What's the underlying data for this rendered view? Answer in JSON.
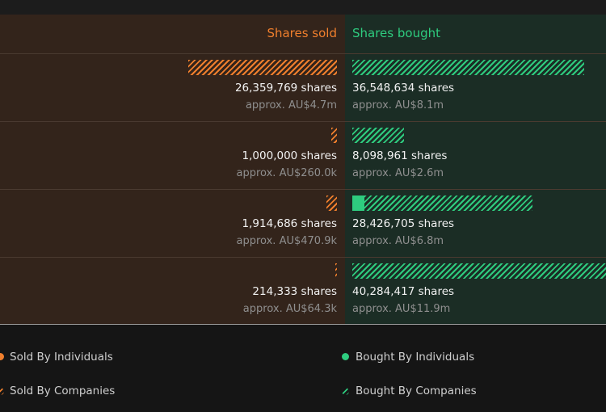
{
  "chart_data": {
    "type": "bar",
    "headers": {
      "sold": "Shares sold",
      "bought": "Shares bought"
    },
    "rows": [
      {
        "sold_individuals": 0,
        "sold_companies": 26359769,
        "sold_shares": "26,359,769 shares",
        "sold_value": "approx. AU$4.7m",
        "bought_individuals": 0,
        "bought_companies": 36548634,
        "bought_shares": "36,548,634 shares",
        "bought_value": "approx. AU$8.1m"
      },
      {
        "sold_individuals": 0,
        "sold_companies": 1000000,
        "sold_shares": "1,000,000 shares",
        "sold_value": "approx. AU$260.0k",
        "bought_individuals": 0,
        "bought_companies": 8098961,
        "bought_shares": "8,098,961 shares",
        "bought_value": "approx. AU$2.6m"
      },
      {
        "sold_individuals": 0,
        "sold_companies": 1914686,
        "sold_shares": "1,914,686 shares",
        "sold_value": "approx. AU$470.9k",
        "bought_individuals": 1900000,
        "bought_companies": 26526705,
        "bought_shares": "28,426,705 shares",
        "bought_value": "approx. AU$6.8m"
      },
      {
        "sold_individuals": 0,
        "sold_companies": 214333,
        "sold_shares": "214,333 shares",
        "sold_value": "approx. AU$64.3k",
        "bought_individuals": 0,
        "bought_companies": 40284417,
        "bought_shares": "40,284,417 shares",
        "bought_value": "approx. AU$11.9m"
      }
    ],
    "legend": {
      "sold_individuals": "Sold By Individuals",
      "bought_individuals": "Bought By Individuals",
      "sold_companies": "Sold By Companies",
      "bought_companies": "Bought By Companies"
    },
    "colors": {
      "sold": "#f07f2d",
      "bought": "#2ecc7f"
    }
  }
}
